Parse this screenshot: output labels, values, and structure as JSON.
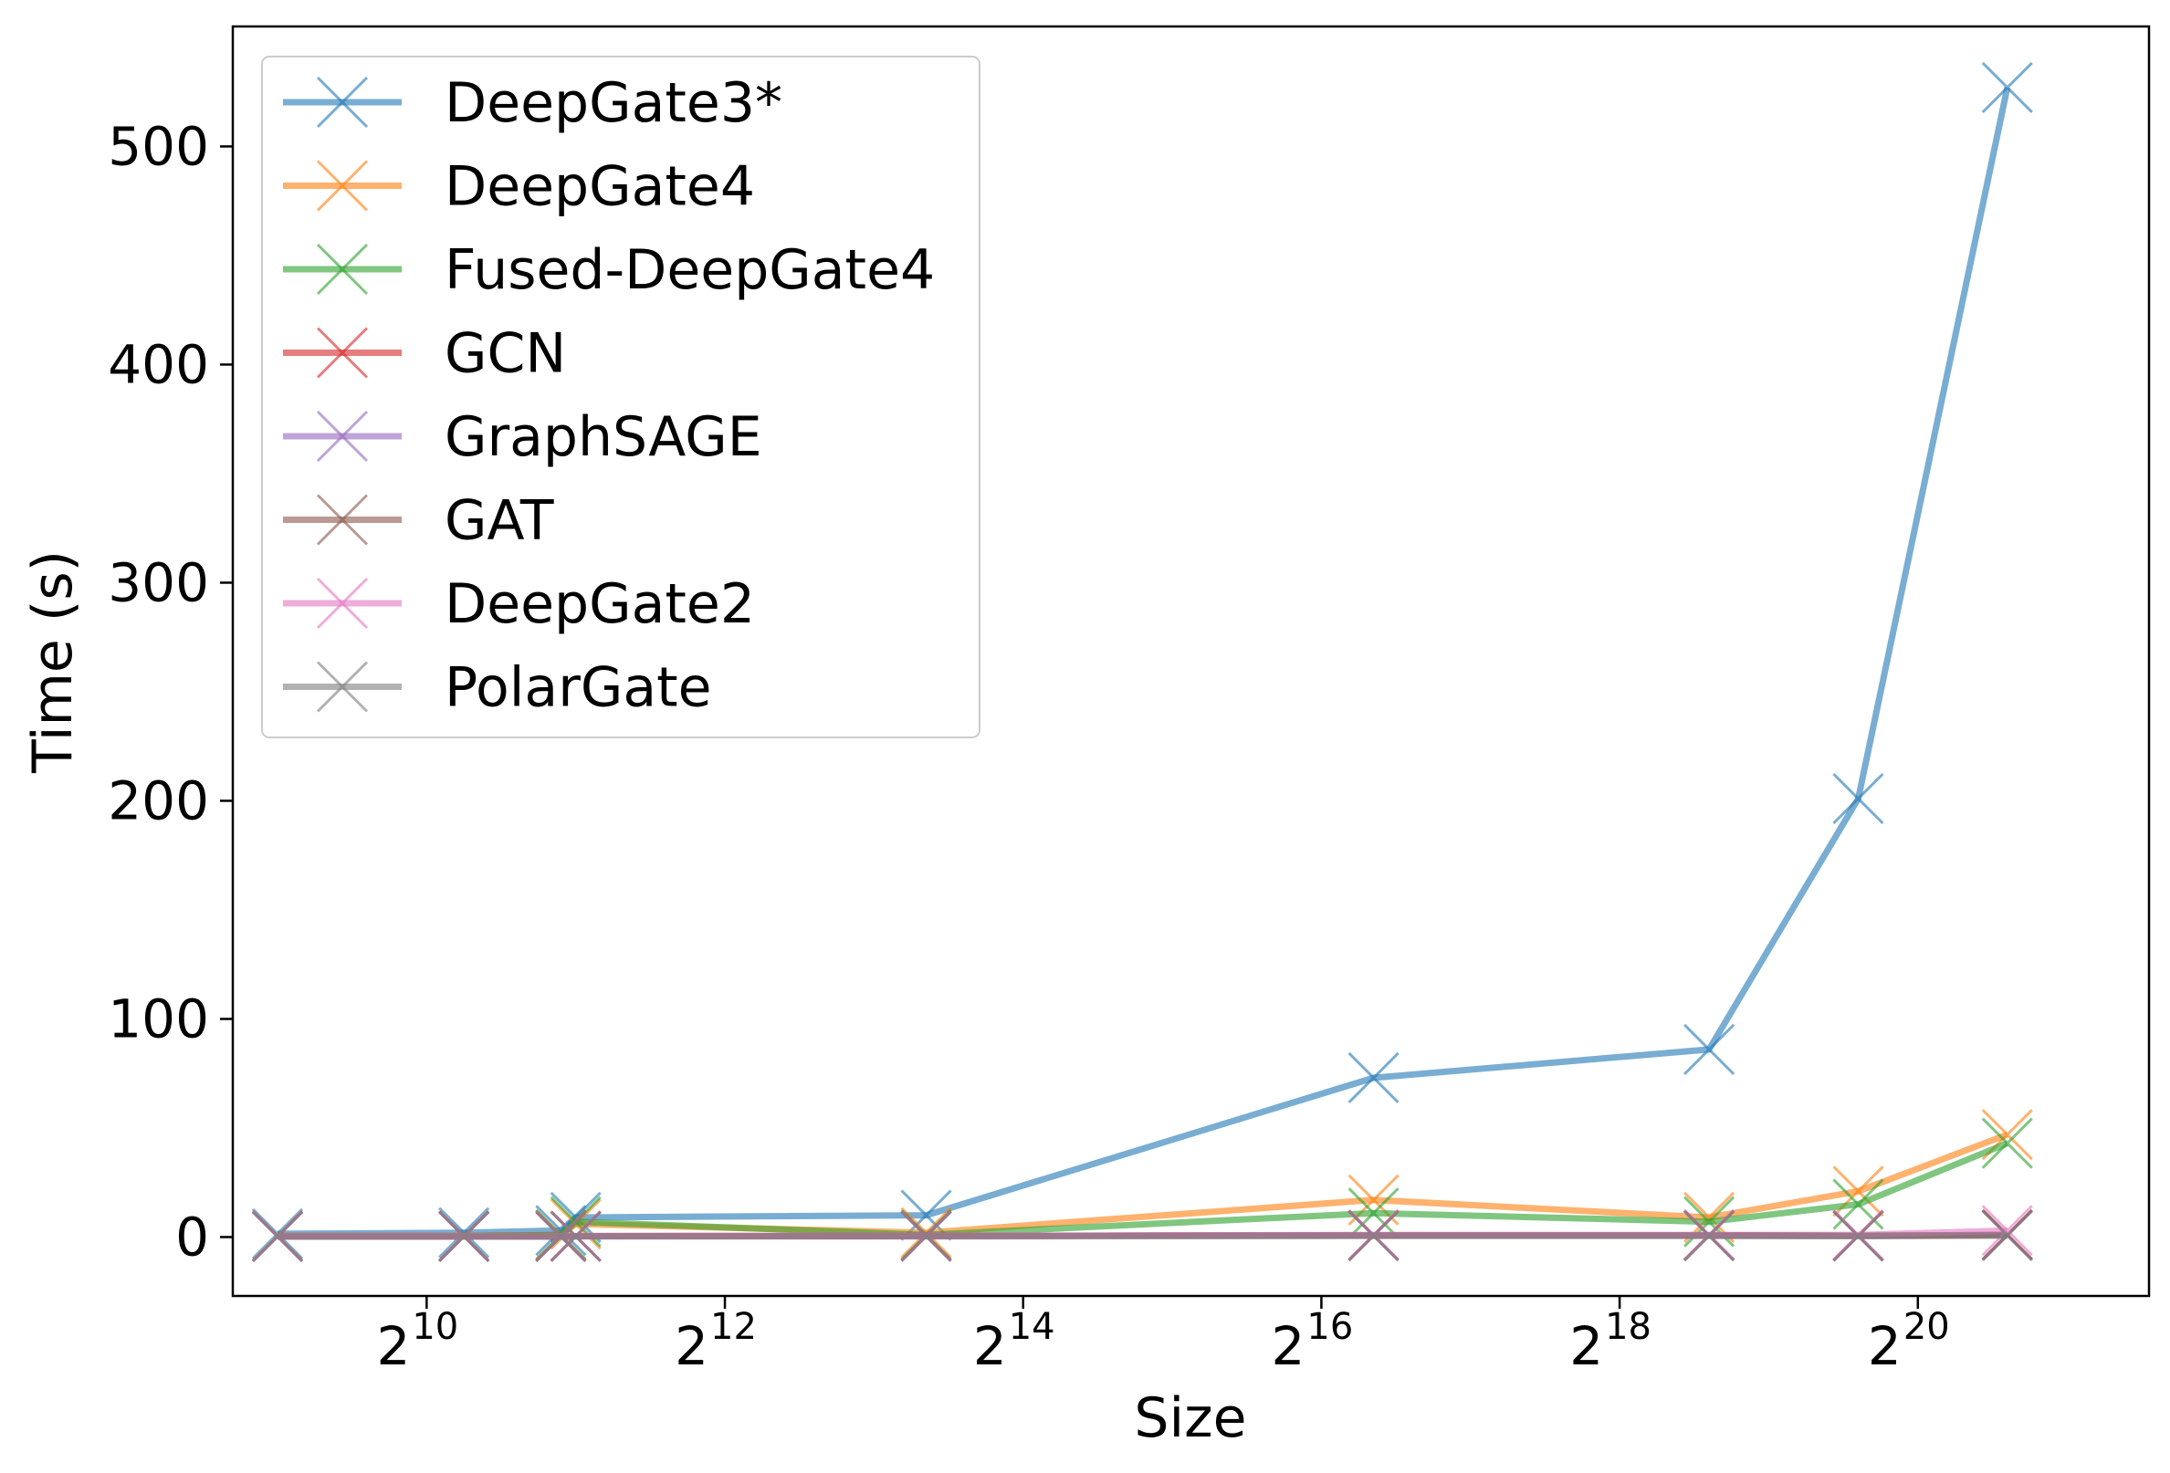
{
  "chart_data": {
    "type": "line",
    "title": "",
    "xlabel": "Size",
    "ylabel": "Time (s)",
    "xscale": "log2",
    "xlim": [
      8.7,
      21.55
    ],
    "ylim": [
      -27,
      555
    ],
    "grid": false,
    "legend_position": "top-left",
    "marker": "x",
    "xticks": [
      {
        "base": "2",
        "exp": "10",
        "value": 10
      },
      {
        "base": "2",
        "exp": "12",
        "value": 12
      },
      {
        "base": "2",
        "exp": "14",
        "value": 14
      },
      {
        "base": "2",
        "exp": "16",
        "value": 16
      },
      {
        "base": "2",
        "exp": "18",
        "value": 18
      },
      {
        "base": "2",
        "exp": "20",
        "value": 20
      }
    ],
    "yticks": [
      {
        "label": "0",
        "value": 0
      },
      {
        "label": "100",
        "value": 100
      },
      {
        "label": "200",
        "value": 200
      },
      {
        "label": "300",
        "value": 300
      },
      {
        "label": "400",
        "value": 400
      },
      {
        "label": "500",
        "value": 500
      }
    ],
    "series": [
      {
        "name": "DeepGate3*",
        "color": "#1f77b4",
        "points": [
          [
            9.0,
            1.5
          ],
          [
            10.25,
            2
          ],
          [
            10.9,
            3
          ],
          [
            11.0,
            9
          ],
          [
            13.35,
            10
          ],
          [
            16.35,
            73
          ],
          [
            18.6,
            86
          ],
          [
            19.6,
            201
          ],
          [
            20.6,
            527
          ]
        ]
      },
      {
        "name": "DeepGate4",
        "color": "#ff7f0e",
        "points": [
          [
            9.0,
            0.5
          ],
          [
            10.25,
            0.5
          ],
          [
            10.9,
            1
          ],
          [
            11.0,
            6
          ],
          [
            13.35,
            2
          ],
          [
            16.35,
            17
          ],
          [
            18.6,
            9
          ],
          [
            19.6,
            21
          ],
          [
            20.6,
            47
          ]
        ]
      },
      {
        "name": "Fused-DeepGate4",
        "color": "#2ca02c",
        "points": [
          [
            9.0,
            0.5
          ],
          [
            10.25,
            0.5
          ],
          [
            10.9,
            1
          ],
          [
            11.0,
            7
          ],
          [
            13.35,
            1
          ],
          [
            16.35,
            11
          ],
          [
            18.6,
            7
          ],
          [
            19.6,
            15
          ],
          [
            20.6,
            43
          ]
        ]
      },
      {
        "name": "GCN",
        "color": "#d62728",
        "points": [
          [
            9.0,
            0.3
          ],
          [
            10.25,
            0.3
          ],
          [
            10.9,
            0.3
          ],
          [
            11.0,
            0.4
          ],
          [
            13.35,
            0.5
          ],
          [
            16.35,
            0.8
          ],
          [
            18.6,
            0.8
          ],
          [
            19.6,
            0.6
          ],
          [
            20.6,
            1.0
          ]
        ]
      },
      {
        "name": "GraphSAGE",
        "color": "#9467bd",
        "points": [
          [
            9.0,
            0.3
          ],
          [
            10.25,
            0.3
          ],
          [
            10.9,
            0.3
          ],
          [
            11.0,
            0.4
          ],
          [
            13.35,
            0.5
          ],
          [
            16.35,
            0.8
          ],
          [
            18.6,
            0.8
          ],
          [
            19.6,
            0.6
          ],
          [
            20.6,
            1.0
          ]
        ]
      },
      {
        "name": "GAT",
        "color": "#8c564b",
        "points": [
          [
            9.0,
            0.3
          ],
          [
            10.25,
            0.3
          ],
          [
            10.9,
            0.3
          ],
          [
            11.0,
            0.4
          ],
          [
            13.35,
            0.5
          ],
          [
            16.35,
            0.8
          ],
          [
            18.6,
            0.8
          ],
          [
            19.6,
            0.6
          ],
          [
            20.6,
            1.0
          ]
        ]
      },
      {
        "name": "DeepGate2",
        "color": "#e377c2",
        "points": [
          [
            9.0,
            0.4
          ],
          [
            10.25,
            0.4
          ],
          [
            10.9,
            0.4
          ],
          [
            11.0,
            0.5
          ],
          [
            13.35,
            0.5
          ],
          [
            16.35,
            1.0
          ],
          [
            18.6,
            1.0
          ],
          [
            19.6,
            1.0
          ],
          [
            20.6,
            3.0
          ]
        ]
      },
      {
        "name": "PolarGate",
        "color": "#7f7f7f",
        "points": [
          [
            9.0,
            0.2
          ],
          [
            10.25,
            0.2
          ],
          [
            10.9,
            0.2
          ],
          [
            11.0,
            0.3
          ],
          [
            13.35,
            0.3
          ],
          [
            16.35,
            0.5
          ],
          [
            18.6,
            0.5
          ],
          [
            19.6,
            0.4
          ],
          [
            20.6,
            0.6
          ]
        ]
      }
    ]
  }
}
